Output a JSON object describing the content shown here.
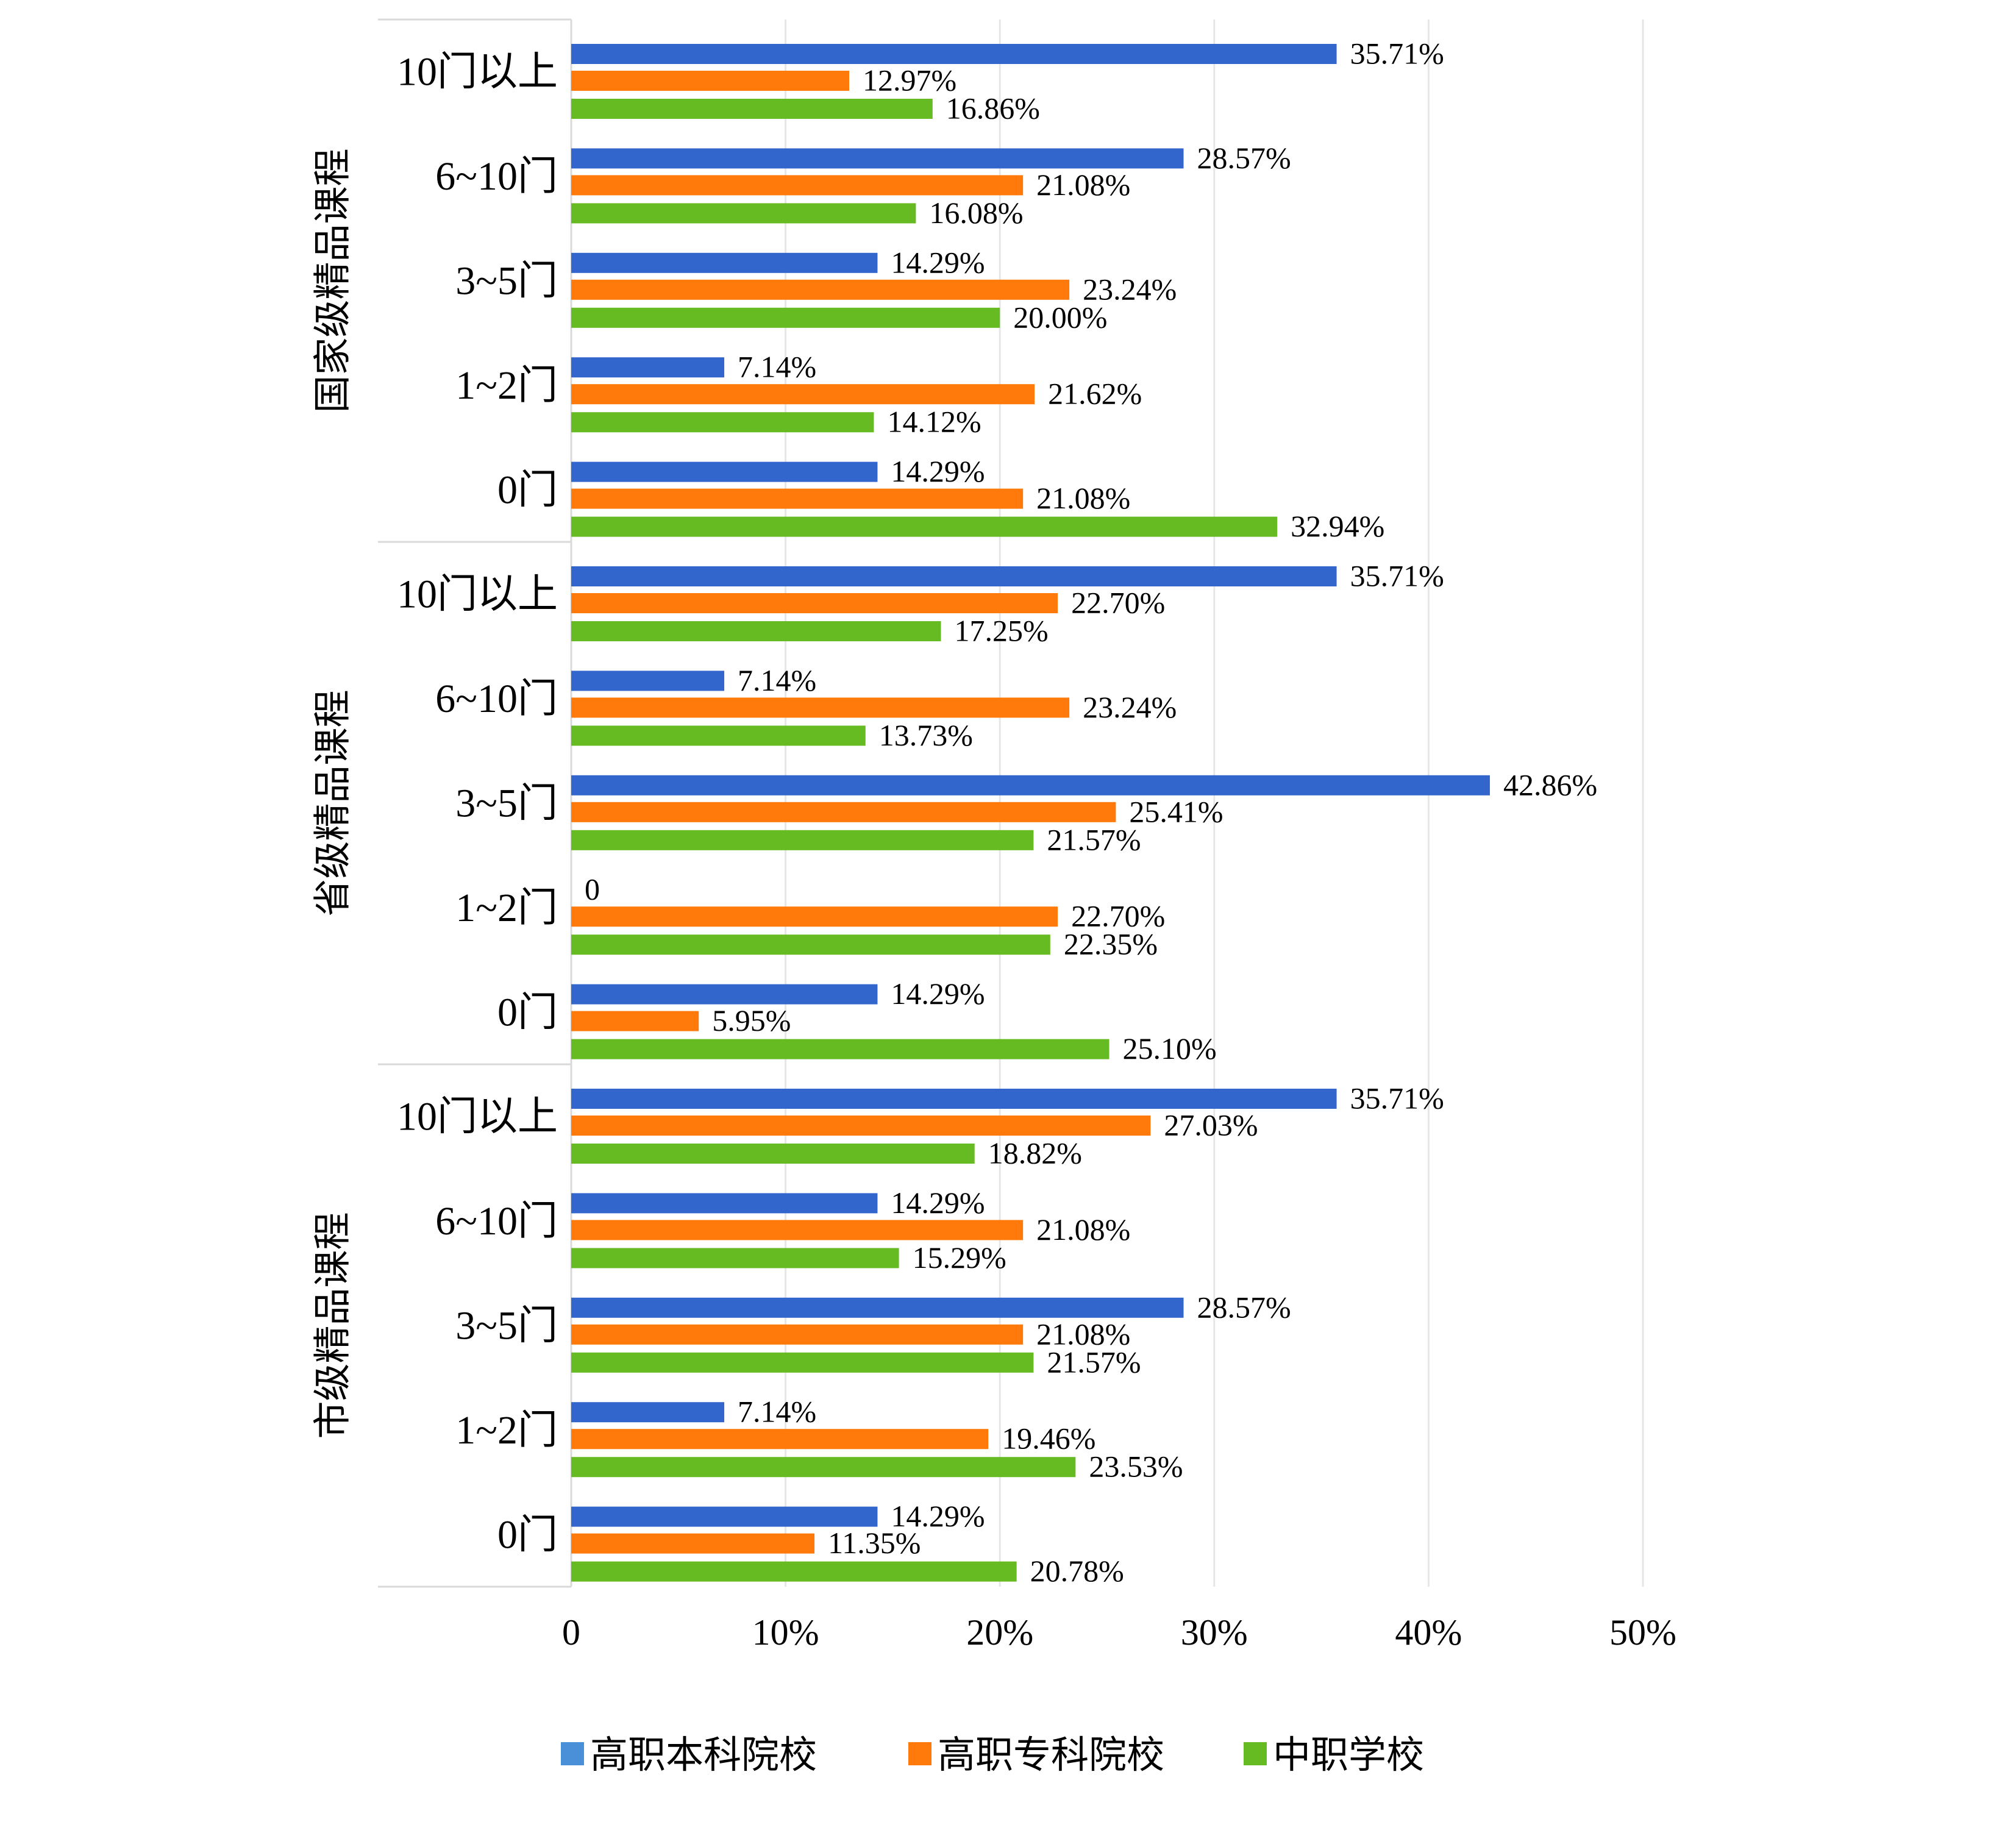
{
  "chart_data": {
    "type": "bar",
    "orientation": "horizontal",
    "xlim": [
      0,
      50
    ],
    "x_ticks": [
      "0",
      "10%",
      "20%",
      "30%",
      "40%",
      "50%"
    ],
    "grid": "vertical",
    "legend_position": "bottom",
    "legend_swatch_color": "#4a90d9",
    "series": [
      {
        "name": "高职本科院校",
        "color": "#3366cc"
      },
      {
        "name": "高职专科院校",
        "color": "#ff7a0a"
      },
      {
        "name": "中职学校",
        "color": "#66bb22"
      }
    ],
    "groups": [
      {
        "label": "国家级精品课程",
        "categories": [
          {
            "label": "10门以上",
            "values": [
              35.71,
              12.97,
              16.86
            ],
            "labels": [
              "35.71%",
              "12.97%",
              "16.86%"
            ]
          },
          {
            "label": "6~10门",
            "values": [
              28.57,
              21.08,
              16.08
            ],
            "labels": [
              "28.57%",
              "21.08%",
              "16.08%"
            ]
          },
          {
            "label": "3~5门",
            "values": [
              14.29,
              23.24,
              20.0
            ],
            "labels": [
              "14.29%",
              "23.24%",
              "20.00%"
            ]
          },
          {
            "label": "1~2门",
            "values": [
              7.14,
              21.62,
              14.12
            ],
            "labels": [
              "7.14%",
              "21.62%",
              "14.12%"
            ]
          },
          {
            "label": "0门",
            "values": [
              14.29,
              21.08,
              32.94
            ],
            "labels": [
              "14.29%",
              "21.08%",
              "32.94%"
            ]
          }
        ]
      },
      {
        "label": "省级精品课程",
        "categories": [
          {
            "label": "10门以上",
            "values": [
              35.71,
              22.7,
              17.25
            ],
            "labels": [
              "35.71%",
              "22.70%",
              "17.25%"
            ]
          },
          {
            "label": "6~10门",
            "values": [
              7.14,
              23.24,
              13.73
            ],
            "labels": [
              "7.14%",
              "23.24%",
              "13.73%"
            ]
          },
          {
            "label": "3~5门",
            "values": [
              42.86,
              25.41,
              21.57
            ],
            "labels": [
              "42.86%",
              "25.41%",
              "21.57%"
            ]
          },
          {
            "label": "1~2门",
            "values": [
              0,
              22.7,
              22.35
            ],
            "labels": [
              "0",
              "22.70%",
              "22.35%"
            ]
          },
          {
            "label": "0门",
            "values": [
              14.29,
              5.95,
              25.1
            ],
            "labels": [
              "14.29%",
              "5.95%",
              "25.10%"
            ]
          }
        ]
      },
      {
        "label": "市级精品课程",
        "categories": [
          {
            "label": "10门以上",
            "values": [
              35.71,
              27.03,
              18.82
            ],
            "labels": [
              "35.71%",
              "27.03%",
              "18.82%"
            ]
          },
          {
            "label": "6~10门",
            "values": [
              14.29,
              21.08,
              15.29
            ],
            "labels": [
              "14.29%",
              "21.08%",
              "15.29%"
            ]
          },
          {
            "label": "3~5门",
            "values": [
              28.57,
              21.08,
              21.57
            ],
            "labels": [
              "28.57%",
              "21.08%",
              "21.57%"
            ]
          },
          {
            "label": "1~2门",
            "values": [
              7.14,
              19.46,
              23.53
            ],
            "labels": [
              "7.14%",
              "19.46%",
              "23.53%"
            ]
          },
          {
            "label": "0门",
            "values": [
              14.29,
              11.35,
              20.78
            ],
            "labels": [
              "14.29%",
              "11.35%",
              "20.78%"
            ]
          }
        ]
      }
    ]
  }
}
